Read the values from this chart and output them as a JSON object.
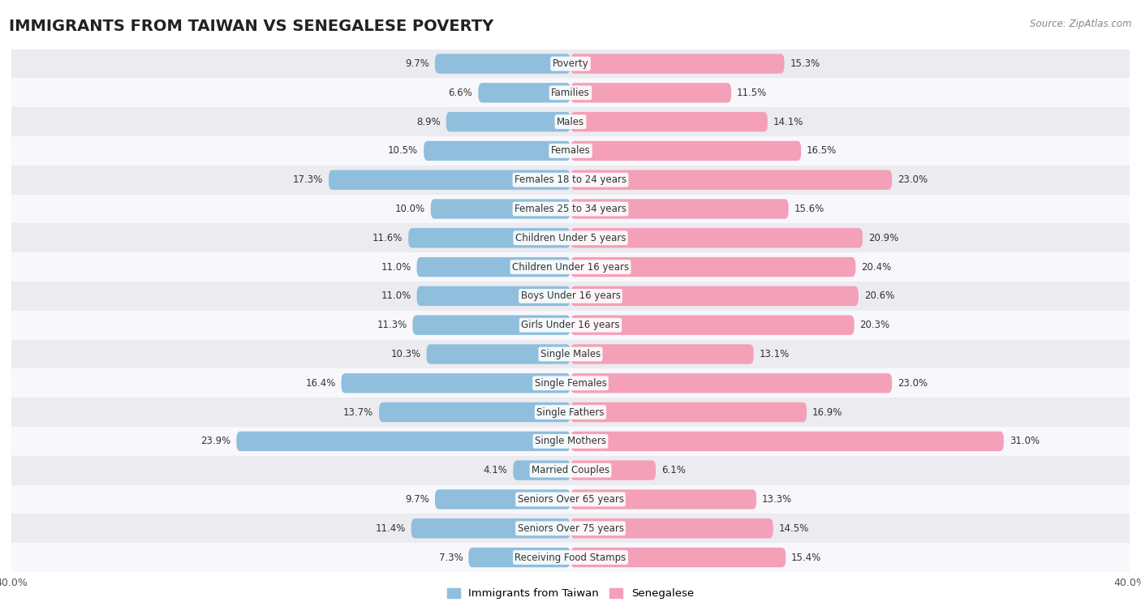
{
  "title": "IMMIGRANTS FROM TAIWAN VS SENEGALESE POVERTY",
  "source": "Source: ZipAtlas.com",
  "categories": [
    "Poverty",
    "Families",
    "Males",
    "Females",
    "Females 18 to 24 years",
    "Females 25 to 34 years",
    "Children Under 5 years",
    "Children Under 16 years",
    "Boys Under 16 years",
    "Girls Under 16 years",
    "Single Males",
    "Single Females",
    "Single Fathers",
    "Single Mothers",
    "Married Couples",
    "Seniors Over 65 years",
    "Seniors Over 75 years",
    "Receiving Food Stamps"
  ],
  "taiwan_values": [
    9.7,
    6.6,
    8.9,
    10.5,
    17.3,
    10.0,
    11.6,
    11.0,
    11.0,
    11.3,
    10.3,
    16.4,
    13.7,
    23.9,
    4.1,
    9.7,
    11.4,
    7.3
  ],
  "senegal_values": [
    15.3,
    11.5,
    14.1,
    16.5,
    23.0,
    15.6,
    20.9,
    20.4,
    20.6,
    20.3,
    13.1,
    23.0,
    16.9,
    31.0,
    6.1,
    13.3,
    14.5,
    15.4
  ],
  "taiwan_color": "#90bedd",
  "senegal_color": "#f4a0b8",
  "row_color_odd": "#ebebf0",
  "row_color_even": "#f8f8fc",
  "xlim": [
    -40,
    40
  ],
  "bar_height": 0.68,
  "title_fontsize": 14,
  "label_fontsize": 8.5,
  "value_fontsize": 8.5,
  "legend_taiwan": "Immigrants from Taiwan",
  "legend_senegal": "Senegalese"
}
